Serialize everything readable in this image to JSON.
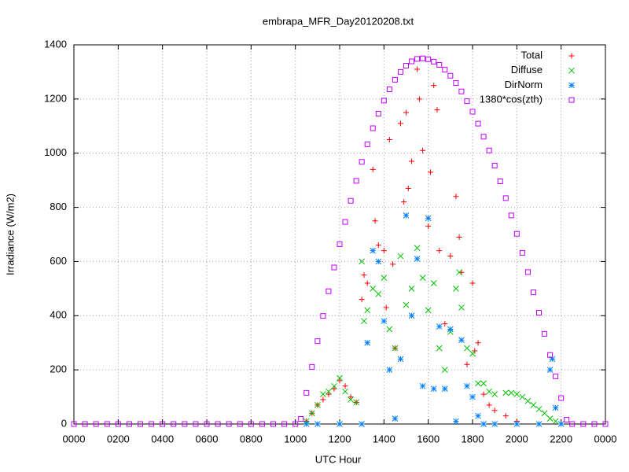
{
  "chart_data": {
    "type": "scatter",
    "title": "embrapa_MFR_Day20120208.txt",
    "x_label": "UTC Hour",
    "y_label": "Irradiance (W/m2)",
    "xlim": [
      0,
      24
    ],
    "ylim": [
      0,
      1400
    ],
    "xticks": [
      {
        "value": 0,
        "label": "0000"
      },
      {
        "value": 2,
        "label": "0200"
      },
      {
        "value": 4,
        "label": "0400"
      },
      {
        "value": 6,
        "label": "0600"
      },
      {
        "value": 8,
        "label": "0800"
      },
      {
        "value": 10,
        "label": "1000"
      },
      {
        "value": 12,
        "label": "1200"
      },
      {
        "value": 14,
        "label": "1400"
      },
      {
        "value": 16,
        "label": "1600"
      },
      {
        "value": 18,
        "label": "1800"
      },
      {
        "value": 20,
        "label": "2000"
      },
      {
        "value": 22,
        "label": "2200"
      },
      {
        "value": 24,
        "label": "0000"
      }
    ],
    "yticks": [
      0,
      200,
      400,
      600,
      800,
      1000,
      1200,
      1400
    ],
    "grid": true,
    "legend": "top-right",
    "series": [
      {
        "name": "Total",
        "color": "#ff0000",
        "marker": "plus",
        "x": [
          10.5,
          10.75,
          11,
          11.25,
          11.5,
          11.75,
          12,
          12.25,
          12.5,
          12.75,
          13,
          13.1,
          13.25,
          13.5,
          13.6,
          13.75,
          14,
          14.1,
          14.25,
          14.4,
          14.5,
          14.75,
          14.9,
          15,
          15.1,
          15.25,
          15.5,
          15.6,
          15.75,
          16,
          16.1,
          16.25,
          16.4,
          16.5,
          16.75,
          17,
          17.25,
          17.4,
          17.5,
          17.75,
          18,
          18.1,
          18.25,
          18.5,
          18.75,
          19,
          19.5,
          20
        ],
        "values": [
          10,
          40,
          70,
          90,
          110,
          130,
          160,
          140,
          100,
          80,
          460,
          550,
          520,
          940,
          750,
          660,
          640,
          430,
          1050,
          590,
          280,
          1110,
          820,
          1150,
          870,
          970,
          1310,
          1200,
          1010,
          730,
          930,
          1250,
          1160,
          640,
          370,
          620,
          840,
          690,
          560,
          220,
          520,
          270,
          300,
          110,
          70,
          50,
          30,
          10
        ]
      },
      {
        "name": "Diffuse",
        "color": "#00c000",
        "marker": "cross",
        "x": [
          10.5,
          10.75,
          11,
          11.25,
          11.5,
          11.75,
          12,
          12.25,
          12.5,
          12.75,
          13,
          13.1,
          13.25,
          13.5,
          13.75,
          14,
          14.25,
          14.5,
          14.75,
          15,
          15.25,
          15.5,
          15.75,
          16,
          16.25,
          16.5,
          16.75,
          17,
          17.25,
          17.4,
          17.5,
          17.75,
          18,
          18.25,
          18.5,
          18.75,
          19,
          19.5,
          19.75,
          20,
          20.25,
          20.5,
          20.75,
          21,
          21.25,
          21.5,
          21.75
        ],
        "values": [
          10,
          40,
          70,
          110,
          120,
          140,
          170,
          120,
          90,
          80,
          600,
          380,
          420,
          500,
          480,
          540,
          350,
          280,
          620,
          440,
          500,
          650,
          540,
          420,
          520,
          280,
          200,
          340,
          500,
          560,
          430,
          280,
          260,
          150,
          150,
          120,
          110,
          115,
          115,
          110,
          100,
          85,
          70,
          55,
          40,
          20,
          10
        ]
      },
      {
        "name": "DirNorm",
        "color": "#0080ff",
        "marker": "star",
        "x": [
          10.5,
          11,
          12,
          13,
          13.25,
          13.5,
          13.75,
          14,
          14.25,
          14.5,
          14.75,
          15,
          15.25,
          15.5,
          15.75,
          16,
          16.25,
          16.5,
          16.75,
          17,
          17.25,
          17.5,
          17.75,
          18,
          18.25,
          18.5,
          19,
          20,
          21,
          21.5,
          21.6,
          21.75,
          22
        ],
        "values": [
          0,
          0,
          0,
          0,
          300,
          640,
          600,
          380,
          200,
          20,
          240,
          770,
          400,
          610,
          140,
          760,
          130,
          360,
          130,
          350,
          10,
          310,
          140,
          100,
          30,
          0,
          0,
          0,
          0,
          200,
          240,
          60,
          0
        ]
      },
      {
        "name": "1380*cos(zth)",
        "color": "#c000ff",
        "marker": "square",
        "x": [
          0,
          0.5,
          1,
          1.5,
          2,
          2.5,
          3,
          3.5,
          4,
          4.5,
          5,
          5.5,
          6,
          6.5,
          7,
          7.5,
          8,
          8.5,
          9,
          9.5,
          10,
          10.25,
          10.5,
          10.75,
          11,
          11.25,
          11.5,
          11.75,
          12,
          12.25,
          12.5,
          12.75,
          13,
          13.25,
          13.5,
          13.75,
          14,
          14.25,
          14.5,
          14.75,
          15,
          15.25,
          15.5,
          15.75,
          16,
          16.25,
          16.5,
          16.75,
          17,
          17.25,
          17.5,
          17.75,
          18,
          18.25,
          18.5,
          18.75,
          19,
          19.25,
          19.5,
          19.75,
          20,
          20.25,
          20.5,
          20.75,
          21,
          21.25,
          21.5,
          21.75,
          22,
          22.25,
          22.5,
          23,
          23.5,
          24
        ],
        "values": [
          0,
          0,
          0,
          0,
          0,
          0,
          0,
          0,
          0,
          0,
          0,
          0,
          0,
          0,
          0,
          0,
          0,
          0,
          0,
          0,
          0,
          19,
          115,
          211,
          306,
          399,
          490,
          578,
          664,
          746,
          824,
          898,
          968,
          1033,
          1092,
          1146,
          1194,
          1236,
          1271,
          1300,
          1323,
          1339,
          1348,
          1350,
          1347,
          1338,
          1326,
          1308,
          1286,
          1259,
          1228,
          1192,
          1153,
          1109,
          1061,
          1010,
          954,
          896,
          834,
          770,
          702,
          632,
          561,
          486,
          411,
          333,
          255,
          176,
          96,
          16,
          0,
          0,
          0,
          0
        ]
      }
    ]
  }
}
